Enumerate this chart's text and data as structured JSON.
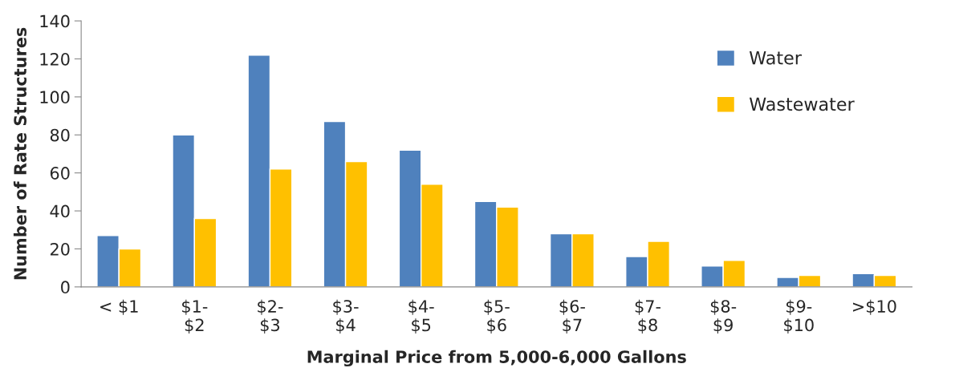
{
  "chart_data": {
    "type": "bar",
    "xlabel": "Marginal Price from 5,000-6,000 Gallons",
    "ylabel": "Number of Rate Structures",
    "categories": [
      "< $1",
      "$1-\n$2",
      "$2-\n$3",
      "$3-\n$4",
      "$4-\n$5",
      "$5-\n$6",
      "$6-\n$7",
      "$7-\n$8",
      "$8-\n$9",
      "$9-\n$10",
      ">$10"
    ],
    "series": [
      {
        "name": "Water",
        "color": "#4f81bd",
        "values": [
          27,
          80,
          122,
          87,
          72,
          45,
          28,
          16,
          11,
          5,
          7
        ]
      },
      {
        "name": "Wastewater",
        "color": "#ffc000",
        "values": [
          20,
          36,
          62,
          66,
          54,
          42,
          28,
          24,
          14,
          6,
          6
        ]
      }
    ],
    "ylim": [
      0,
      140
    ],
    "yticks": [
      0,
      20,
      40,
      60,
      80,
      100,
      120,
      140
    ],
    "grid": false,
    "legend": "top right"
  }
}
